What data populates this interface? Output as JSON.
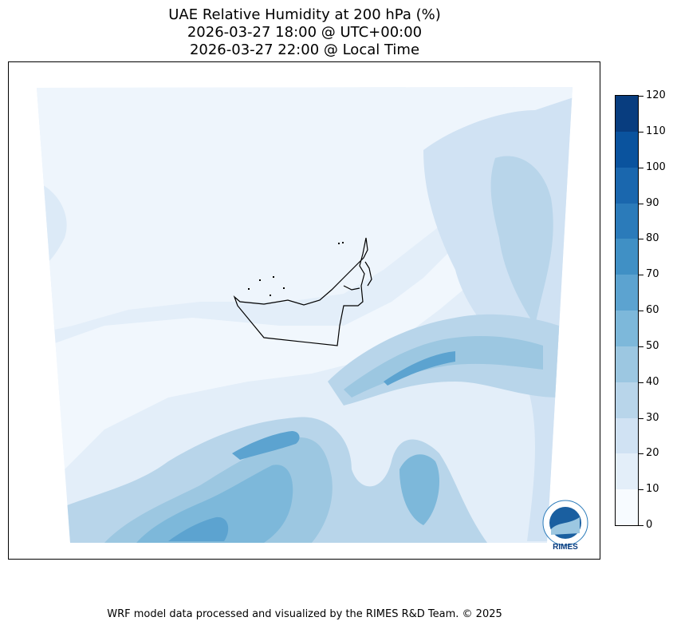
{
  "title": {
    "line1": "UAE Relative Humidity at 200 hPa (%)",
    "line2": "2026-03-27 18:00 @ UTC+00:00",
    "line3": "2026-03-27 22:00 @ Local Time"
  },
  "colorbar": {
    "ticks": [
      "0",
      "10",
      "20",
      "30",
      "40",
      "50",
      "60",
      "70",
      "80",
      "90",
      "100",
      "110",
      "120"
    ],
    "colors": [
      "#f7fbff",
      "#e3eef9",
      "#d0e2f3",
      "#b8d5ea",
      "#9cc7e1",
      "#7db8da",
      "#5ca3d0",
      "#4090c5",
      "#2b7bba",
      "#1a67ae",
      "#0a539e",
      "#083d7f"
    ]
  },
  "logo": {
    "text": "RIMES"
  },
  "footer": "WRF model data processed and visualized by the RIMES R&D Team. © 2025"
}
